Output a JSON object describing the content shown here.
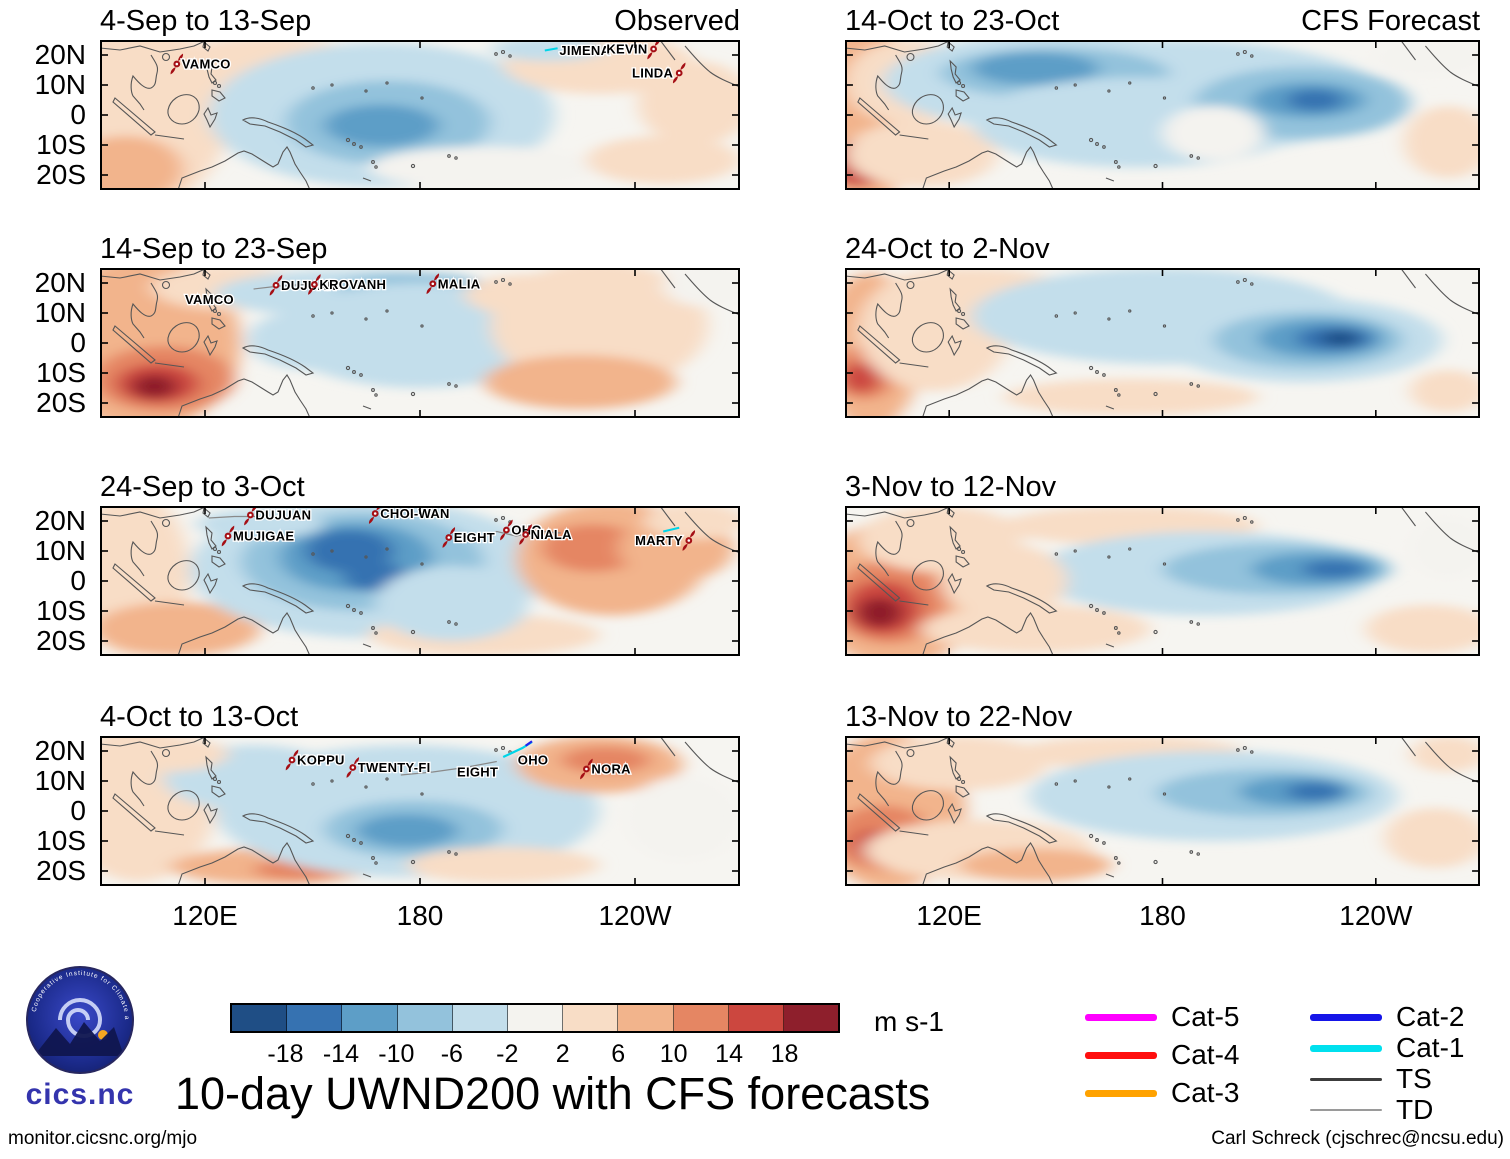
{
  "page": {
    "title": "10-day UWND200 with CFS forecasts",
    "footer_left": "monitor.cicsnc.org/mjo",
    "footer_right": "Carl Schreck (cjschrec@ncsu.edu)"
  },
  "logo": {
    "text": "cics.nc",
    "ring_text": "Cooperative Institute for Climate and Satellites"
  },
  "columns": [
    {
      "header": "Observed"
    },
    {
      "header": "CFS Forecast"
    }
  ],
  "colorbar": {
    "ticks": [
      "-18",
      "-14",
      "-10",
      "-6",
      "-2",
      "2",
      "6",
      "10",
      "14",
      "18"
    ],
    "unit_label": "m s-1"
  },
  "legend": {
    "columns": [
      [
        {
          "label": "Cat-5",
          "color": "#ff00ff",
          "thickness": 7
        },
        {
          "label": "Cat-4",
          "color": "#ff0f0f",
          "thickness": 7
        },
        {
          "label": "Cat-3",
          "color": "#ffa200",
          "thickness": 7
        }
      ],
      [
        {
          "label": "Cat-2",
          "color": "#1515e8",
          "thickness": 7
        },
        {
          "label": "Cat-1",
          "color": "#00e0ee",
          "thickness": 7
        },
        {
          "label": "TS",
          "color": "#3c3c3c",
          "thickness": 3
        },
        {
          "label": "TD",
          "color": "#9a9a9a",
          "thickness": 2
        }
      ]
    ]
  },
  "chart_data": {
    "type": "heatmap",
    "variable": "UWND200",
    "units": "m s-1",
    "description": "10-day mean 200-hPa zonal wind anomalies over the tropical Indo-Pacific (20S-20N), four observed decads and four CFS forecast decads, with tropical cyclone names overlaid",
    "lat_ticks": [
      "20N",
      "10N",
      "0",
      "10S",
      "20S"
    ],
    "lon_ticks": [
      "120E",
      "180",
      "120W"
    ],
    "contour_levels": [
      -18,
      -14,
      -10,
      -6,
      -2,
      2,
      6,
      10,
      14,
      18
    ],
    "colors": [
      "#1f4e85",
      "#3672b1",
      "#5d9ec7",
      "#93c2dc",
      "#c3deeb",
      "#f4f3ef",
      "#f8ddc6",
      "#f2b48c",
      "#e58663",
      "#cc473f",
      "#8e1f2c"
    ],
    "panels": [
      {
        "title": "4-Sep to 13-Sep",
        "column": "Observed",
        "storms": [
          {
            "name": "VAMCO",
            "x": 12,
            "y": 16,
            "marker": true
          },
          {
            "name": "JIMENA",
            "x": 71,
            "y": 7,
            "marker": false
          },
          {
            "name": "KEVIN",
            "x": 86.5,
            "y": 6,
            "marker": true
          },
          {
            "name": "LINDA",
            "x": 90.5,
            "y": 22,
            "marker": true
          }
        ],
        "tracks": [
          {
            "color": "#00d5e8",
            "width": 2,
            "points": [
              [
                69.5,
                7
              ],
              [
                71.5,
                5.5
              ]
            ]
          }
        ],
        "blobs": [
          [
            6,
            50,
            14,
            62,
            6
          ],
          [
            4,
            86,
            9,
            22,
            7
          ],
          [
            26,
            16,
            16,
            18,
            6
          ],
          [
            44,
            50,
            27,
            48,
            4
          ],
          [
            45,
            55,
            16,
            28,
            3
          ],
          [
            44,
            57,
            9,
            14,
            2
          ],
          [
            78,
            16,
            15,
            20,
            6
          ],
          [
            93,
            42,
            9,
            28,
            6
          ],
          [
            70,
            6,
            9,
            8,
            4
          ],
          [
            60,
            85,
            18,
            14,
            5
          ],
          [
            88,
            80,
            12,
            16,
            6
          ]
        ]
      },
      {
        "title": "14-Sep to 23-Sep",
        "column": "Observed",
        "storms": [
          {
            "name": "VAMCO",
            "x": 12.5,
            "y": 21,
            "marker": false
          },
          {
            "name": "DUJUAN",
            "x": 27.5,
            "y": 11.5,
            "marker": true
          },
          {
            "name": "KROVANH",
            "x": 33.5,
            "y": 11,
            "marker": true
          },
          {
            "name": "MALIA",
            "x": 52,
            "y": 10.5,
            "marker": true
          }
        ],
        "tracks": [
          {
            "color": "#8a8a8a",
            "width": 1.2,
            "points": [
              [
                24,
                14
              ],
              [
                28,
                12
              ],
              [
                32,
                11
              ],
              [
                36,
                12
              ]
            ]
          }
        ],
        "blobs": [
          [
            7,
            50,
            15,
            58,
            7
          ],
          [
            10,
            74,
            11,
            22,
            8
          ],
          [
            9,
            77,
            6.5,
            13,
            9
          ],
          [
            8.5,
            79,
            3.5,
            8,
            10
          ],
          [
            20,
            13,
            12,
            15,
            6
          ],
          [
            40,
            17,
            22,
            16,
            4
          ],
          [
            49,
            14,
            12,
            11,
            3
          ],
          [
            50,
            45,
            22,
            35,
            4
          ],
          [
            78,
            38,
            17,
            42,
            6
          ],
          [
            75,
            76,
            15,
            18,
            7
          ],
          [
            67,
            18,
            10,
            14,
            6
          ],
          [
            95,
            12,
            7,
            14,
            5
          ],
          [
            33,
            48,
            10,
            20,
            4
          ]
        ]
      },
      {
        "title": "24-Sep to 3-Oct",
        "column": "Observed",
        "storms": [
          {
            "name": "DUJUAN",
            "x": 23.5,
            "y": 6,
            "marker": true
          },
          {
            "name": "MUJIGAE",
            "x": 20,
            "y": 20,
            "marker": true
          },
          {
            "name": "CHOI-WAN",
            "x": 43,
            "y": 5,
            "marker": true
          },
          {
            "name": "EIGHT",
            "x": 54.5,
            "y": 21,
            "marker": true
          },
          {
            "name": "OHO",
            "x": 63.5,
            "y": 16,
            "marker": true
          },
          {
            "name": "NIALA",
            "x": 66.5,
            "y": 19,
            "marker": true
          },
          {
            "name": "MARTY",
            "x": 92,
            "y": 23,
            "marker": true
          }
        ],
        "tracks": [
          {
            "color": "#8a8a8a",
            "width": 1.2,
            "points": [
              [
                59,
                22
              ],
              [
                62,
                17
              ],
              [
                65,
                20
              ],
              [
                69,
                17
              ],
              [
                72,
                18
              ]
            ]
          },
          {
            "color": "#00d5e8",
            "width": 2,
            "points": [
              [
                88,
                17
              ],
              [
                90.5,
                14.5
              ]
            ]
          },
          {
            "color": "#8a8a8a",
            "width": 1.2,
            "points": [
              [
                17,
                8
              ],
              [
                21,
                7
              ],
              [
                25,
                7
              ]
            ]
          }
        ],
        "blobs": [
          [
            5,
            45,
            9,
            55,
            6
          ],
          [
            12,
            82,
            13,
            18,
            7
          ],
          [
            42,
            42,
            28,
            46,
            4
          ],
          [
            41,
            37,
            19,
            33,
            3
          ],
          [
            40,
            34,
            12,
            23,
            2
          ],
          [
            39,
            30,
            7,
            14,
            1
          ],
          [
            43,
            47,
            5,
            10,
            1
          ],
          [
            60,
            86,
            18,
            14,
            6
          ],
          [
            80,
            35,
            15,
            38,
            7
          ],
          [
            77,
            28,
            8,
            16,
            8
          ],
          [
            90,
            28,
            9,
            22,
            7
          ],
          [
            93,
            10,
            8,
            12,
            6
          ],
          [
            25,
            12,
            10,
            10,
            4
          ],
          [
            55,
            65,
            12,
            25,
            4
          ]
        ]
      },
      {
        "title": "4-Oct to 13-Oct",
        "column": "Observed",
        "storms": [
          {
            "name": "KOPPU",
            "x": 30,
            "y": 16,
            "marker": true
          },
          {
            "name": "TWENTY-FI",
            "x": 39.5,
            "y": 21,
            "marker": true
          },
          {
            "name": "EIGHT",
            "x": 55,
            "y": 24,
            "marker": false
          },
          {
            "name": "OHO",
            "x": 64.5,
            "y": 16,
            "marker": false
          },
          {
            "name": "NORA",
            "x": 76,
            "y": 22,
            "marker": true
          }
        ],
        "tracks": [
          {
            "color": "#8a8a8a",
            "width": 1.2,
            "points": [
              [
                47,
                26
              ],
              [
                52,
                24
              ],
              [
                57,
                21
              ],
              [
                62,
                17
              ]
            ]
          },
          {
            "color": "#00d5e8",
            "width": 2.2,
            "points": [
              [
                63,
                14
              ],
              [
                66,
                8
              ],
              [
                67.5,
                4
              ]
            ]
          },
          {
            "color": "#2222ee",
            "width": 2.2,
            "points": [
              [
                66.5,
                6.5
              ],
              [
                67.5,
                3.5
              ]
            ]
          }
        ],
        "blobs": [
          [
            6,
            45,
            12,
            52,
            6
          ],
          [
            27,
            87,
            16,
            12,
            7
          ],
          [
            31,
            89,
            7,
            7,
            8
          ],
          [
            48,
            50,
            30,
            44,
            4
          ],
          [
            49,
            62,
            14,
            19,
            3
          ],
          [
            48,
            63,
            8,
            11,
            2
          ],
          [
            24,
            28,
            14,
            22,
            4
          ],
          [
            78,
            19,
            13,
            19,
            7
          ],
          [
            79,
            16,
            7,
            9,
            8
          ],
          [
            91,
            55,
            9,
            28,
            5
          ],
          [
            63,
            86,
            15,
            12,
            6
          ],
          [
            10,
            12,
            10,
            12,
            6
          ]
        ]
      },
      {
        "title": "14-Oct to 23-Oct",
        "column": "CFS Forecast",
        "storms": [],
        "tracks": [],
        "blobs": [
          [
            52,
            38,
            33,
            38,
            4
          ],
          [
            3,
            50,
            8,
            62,
            7
          ],
          [
            2,
            82,
            5,
            16,
            9
          ],
          [
            10,
            28,
            10,
            28,
            6
          ],
          [
            12,
            76,
            12,
            22,
            6
          ],
          [
            34,
            28,
            28,
            32,
            4
          ],
          [
            33,
            22,
            18,
            17,
            3
          ],
          [
            30,
            19,
            10,
            11,
            2
          ],
          [
            46,
            55,
            26,
            30,
            4
          ],
          [
            72,
            42,
            17,
            24,
            3
          ],
          [
            73,
            40,
            9,
            12,
            2
          ],
          [
            74,
            40,
            4.5,
            7,
            1
          ],
          [
            95,
            68,
            7,
            24,
            6
          ],
          [
            92,
            12,
            9,
            12,
            5
          ],
          [
            58,
            62,
            8,
            18,
            5
          ]
        ]
      },
      {
        "title": "24-Oct to 2-Nov",
        "column": "CFS Forecast",
        "storms": [],
        "tracks": [],
        "blobs": [
          [
            4,
            55,
            8,
            52,
            7
          ],
          [
            3,
            70,
            5,
            18,
            8
          ],
          [
            2.5,
            73,
            3,
            10,
            9
          ],
          [
            14,
            42,
            12,
            40,
            6
          ],
          [
            20,
            12,
            14,
            12,
            6
          ],
          [
            50,
            32,
            30,
            32,
            4
          ],
          [
            72,
            48,
            22,
            28,
            4
          ],
          [
            73,
            48,
            15,
            19,
            3
          ],
          [
            75,
            47,
            10,
            13,
            2
          ],
          [
            77,
            47,
            6,
            8,
            1
          ],
          [
            78,
            47,
            3,
            5,
            0
          ],
          [
            45,
            86,
            20,
            12,
            6
          ],
          [
            95,
            82,
            6,
            14,
            6
          ]
        ]
      },
      {
        "title": "3-Nov to 12-Nov",
        "column": "CFS Forecast",
        "storms": [],
        "tracks": [],
        "blobs": [
          [
            8,
            58,
            14,
            48,
            7
          ],
          [
            7,
            64,
            9,
            28,
            8
          ],
          [
            6,
            68,
            6,
            18,
            9
          ],
          [
            5.5,
            71,
            3.5,
            10,
            10
          ],
          [
            15,
            22,
            13,
            22,
            6
          ],
          [
            30,
            82,
            18,
            16,
            6
          ],
          [
            45,
            13,
            20,
            13,
            6
          ],
          [
            57,
            45,
            27,
            28,
            4
          ],
          [
            68,
            42,
            18,
            17,
            3
          ],
          [
            74,
            42,
            10,
            11,
            2
          ],
          [
            77,
            42,
            5,
            6,
            1
          ],
          [
            92,
            82,
            10,
            16,
            6
          ],
          [
            95,
            28,
            6,
            20,
            5
          ],
          [
            25,
            50,
            10,
            25,
            6
          ]
        ]
      },
      {
        "title": "13-Nov to 22-Nov",
        "column": "CFS Forecast",
        "storms": [],
        "tracks": [],
        "blobs": [
          [
            7,
            50,
            12,
            52,
            7
          ],
          [
            6,
            68,
            8,
            22,
            8
          ],
          [
            5,
            73,
            4,
            11,
            9
          ],
          [
            21,
            76,
            18,
            20,
            6
          ],
          [
            30,
            86,
            12,
            11,
            7
          ],
          [
            18,
            18,
            14,
            18,
            6
          ],
          [
            45,
            11,
            18,
            11,
            6
          ],
          [
            58,
            40,
            29,
            30,
            4
          ],
          [
            66,
            38,
            17,
            16,
            3
          ],
          [
            71,
            37,
            9,
            10,
            2
          ],
          [
            74,
            37,
            4.5,
            6,
            1
          ],
          [
            93,
            68,
            8,
            20,
            6
          ],
          [
            95,
            12,
            6,
            12,
            6
          ]
        ]
      }
    ]
  }
}
